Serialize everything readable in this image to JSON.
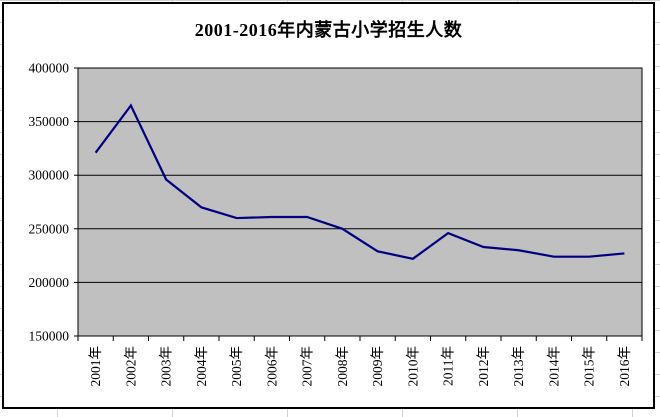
{
  "chart": {
    "title": "2001-2016年内蒙古小学招生人数"
  },
  "chart_data": {
    "type": "line",
    "title": "2001-2016年内蒙古小学招生人数",
    "categories": [
      "2001年",
      "2002年",
      "2003年",
      "2004年",
      "2005年",
      "2006年",
      "2007年",
      "2008年",
      "2009年",
      "2010年",
      "2011年",
      "2012年",
      "2013年",
      "2014年",
      "2015年",
      "2016年"
    ],
    "values": [
      321000,
      365000,
      296000,
      270000,
      260000,
      261000,
      261000,
      250000,
      229000,
      222000,
      246000,
      233000,
      230000,
      224000,
      224000,
      227000
    ],
    "xlabel": "",
    "ylabel": "",
    "ylim": [
      150000,
      400000
    ],
    "yticks": [
      150000,
      200000,
      250000,
      300000,
      350000,
      400000
    ],
    "ytick_interval": 50000,
    "grid": true,
    "legend_position": "none",
    "x_label_rotation": -90,
    "colors": {
      "series_line": "#000080",
      "plot_background": "#c0c0c0",
      "gridline": "#000000",
      "axis": "#000000",
      "chart_background": "#ffffff",
      "border": "#000000"
    }
  }
}
